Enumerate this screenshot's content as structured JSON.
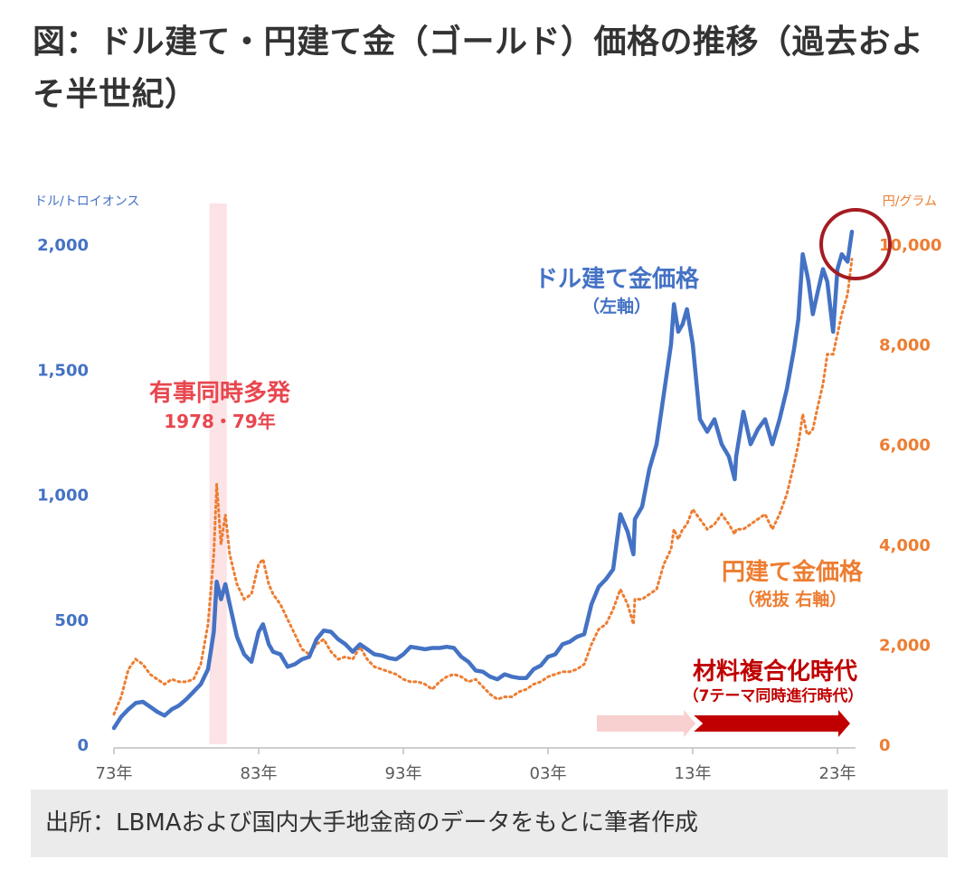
{
  "title": "図：ドル建て・円建て金（ゴールド）価格の推移（過去およそ半世紀）",
  "source_note": "出所：LBMAおよび国内大手地金商のデータをもとに筆者作成",
  "colors": {
    "usd_series": "#4472c4",
    "jpy_series": "#ed7d31",
    "event_band": "#fbe3e6",
    "event_label": "#e8474f",
    "era_label": "#c00000",
    "arrow_light": "#f8d0d0",
    "arrow_dark": "#c00000",
    "circle": "#a51c22"
  },
  "chart_data": {
    "type": "line",
    "left_axis": {
      "unit_label": "ドル/トロイオンス",
      "ticks": [
        0,
        500,
        1000,
        1500,
        2000
      ],
      "tick_labels": [
        "0",
        "500",
        "1,000",
        "1,500",
        "2,000"
      ],
      "range": [
        0,
        2000
      ]
    },
    "right_axis": {
      "unit_label": "円/グラム",
      "ticks": [
        0,
        2000,
        4000,
        6000,
        8000,
        10000
      ],
      "tick_labels": [
        "0",
        "2,000",
        "4,000",
        "6,000",
        "8,000",
        "10,000"
      ],
      "range": [
        0,
        10000
      ]
    },
    "x_axis": {
      "range": [
        1973,
        2024.5
      ],
      "ticks": [
        1973,
        1983,
        1993,
        2003,
        2013,
        2023
      ],
      "tick_labels": [
        "73年",
        "83年",
        "93年",
        "03年",
        "13年",
        "23年"
      ]
    },
    "series": [
      {
        "name": "ドル建て金価格",
        "axis": "left",
        "style": "solid",
        "points": [
          [
            1973,
            65
          ],
          [
            1973.5,
            110
          ],
          [
            1974,
            140
          ],
          [
            1974.5,
            165
          ],
          [
            1975,
            170
          ],
          [
            1975.5,
            150
          ],
          [
            1976,
            130
          ],
          [
            1976.5,
            115
          ],
          [
            1977,
            140
          ],
          [
            1977.5,
            155
          ],
          [
            1978,
            180
          ],
          [
            1978.5,
            210
          ],
          [
            1979,
            240
          ],
          [
            1979.5,
            300
          ],
          [
            1979.9,
            450
          ],
          [
            1980.1,
            650
          ],
          [
            1980.4,
            580
          ],
          [
            1980.7,
            640
          ],
          [
            1981,
            560
          ],
          [
            1981.5,
            430
          ],
          [
            1982,
            360
          ],
          [
            1982.5,
            330
          ],
          [
            1983,
            450
          ],
          [
            1983.3,
            480
          ],
          [
            1983.7,
            400
          ],
          [
            1984,
            370
          ],
          [
            1984.5,
            360
          ],
          [
            1985,
            310
          ],
          [
            1985.5,
            320
          ],
          [
            1986,
            340
          ],
          [
            1986.5,
            350
          ],
          [
            1987,
            420
          ],
          [
            1987.5,
            455
          ],
          [
            1988,
            450
          ],
          [
            1988.5,
            420
          ],
          [
            1989,
            400
          ],
          [
            1989.5,
            370
          ],
          [
            1990,
            400
          ],
          [
            1990.5,
            380
          ],
          [
            1991,
            360
          ],
          [
            1991.5,
            355
          ],
          [
            1992,
            345
          ],
          [
            1992.5,
            340
          ],
          [
            1993,
            360
          ],
          [
            1993.5,
            390
          ],
          [
            1994,
            385
          ],
          [
            1994.5,
            380
          ],
          [
            1995,
            385
          ],
          [
            1995.5,
            385
          ],
          [
            1996,
            390
          ],
          [
            1996.5,
            385
          ],
          [
            1997,
            350
          ],
          [
            1997.5,
            330
          ],
          [
            1998,
            295
          ],
          [
            1998.5,
            290
          ],
          [
            1999,
            270
          ],
          [
            1999.5,
            260
          ],
          [
            2000,
            280
          ],
          [
            2000.5,
            270
          ],
          [
            2001,
            265
          ],
          [
            2001.5,
            265
          ],
          [
            2002,
            300
          ],
          [
            2002.5,
            315
          ],
          [
            2003,
            350
          ],
          [
            2003.5,
            360
          ],
          [
            2004,
            400
          ],
          [
            2004.5,
            410
          ],
          [
            2005,
            430
          ],
          [
            2005.5,
            440
          ],
          [
            2006,
            560
          ],
          [
            2006.5,
            630
          ],
          [
            2007,
            660
          ],
          [
            2007.5,
            700
          ],
          [
            2008,
            920
          ],
          [
            2008.5,
            850
          ],
          [
            2008.9,
            760
          ],
          [
            2009,
            900
          ],
          [
            2009.5,
            950
          ],
          [
            2010,
            1100
          ],
          [
            2010.5,
            1200
          ],
          [
            2011,
            1400
          ],
          [
            2011.5,
            1600
          ],
          [
            2011.7,
            1760
          ],
          [
            2012,
            1650
          ],
          [
            2012.3,
            1680
          ],
          [
            2012.6,
            1740
          ],
          [
            2013,
            1600
          ],
          [
            2013.5,
            1300
          ],
          [
            2014,
            1250
          ],
          [
            2014.5,
            1300
          ],
          [
            2015,
            1200
          ],
          [
            2015.5,
            1150
          ],
          [
            2015.9,
            1060
          ],
          [
            2016,
            1150
          ],
          [
            2016.5,
            1330
          ],
          [
            2017,
            1200
          ],
          [
            2017.5,
            1260
          ],
          [
            2018,
            1300
          ],
          [
            2018.5,
            1200
          ],
          [
            2019,
            1300
          ],
          [
            2019.5,
            1420
          ],
          [
            2020,
            1580
          ],
          [
            2020.3,
            1700
          ],
          [
            2020.6,
            1960
          ],
          [
            2020.9,
            1880
          ],
          [
            2021,
            1850
          ],
          [
            2021.3,
            1720
          ],
          [
            2021.6,
            1800
          ],
          [
            2022,
            1900
          ],
          [
            2022.3,
            1850
          ],
          [
            2022.7,
            1650
          ],
          [
            2023,
            1900
          ],
          [
            2023.3,
            1960
          ],
          [
            2023.7,
            1930
          ],
          [
            2024,
            2050
          ]
        ]
      },
      {
        "name": "円建て金価格",
        "axis": "right",
        "style": "dotted",
        "points": [
          [
            1973,
            600
          ],
          [
            1973.5,
            950
          ],
          [
            1974,
            1500
          ],
          [
            1974.5,
            1700
          ],
          [
            1975,
            1600
          ],
          [
            1975.5,
            1400
          ],
          [
            1976,
            1300
          ],
          [
            1976.5,
            1200
          ],
          [
            1977,
            1300
          ],
          [
            1977.5,
            1250
          ],
          [
            1978,
            1250
          ],
          [
            1978.5,
            1300
          ],
          [
            1979,
            1600
          ],
          [
            1979.5,
            2400
          ],
          [
            1979.9,
            3800
          ],
          [
            1980.1,
            5200
          ],
          [
            1980.4,
            4000
          ],
          [
            1980.7,
            4600
          ],
          [
            1981,
            3800
          ],
          [
            1981.5,
            3200
          ],
          [
            1982,
            2900
          ],
          [
            1982.5,
            3000
          ],
          [
            1983,
            3600
          ],
          [
            1983.3,
            3700
          ],
          [
            1983.7,
            3200
          ],
          [
            1984,
            3000
          ],
          [
            1984.5,
            2800
          ],
          [
            1985,
            2500
          ],
          [
            1985.5,
            2200
          ],
          [
            1986,
            1900
          ],
          [
            1986.5,
            1800
          ],
          [
            1987,
            2000
          ],
          [
            1987.5,
            2100
          ],
          [
            1988,
            1850
          ],
          [
            1988.5,
            1700
          ],
          [
            1989,
            1750
          ],
          [
            1989.5,
            1700
          ],
          [
            1990,
            1950
          ],
          [
            1990.5,
            1700
          ],
          [
            1991,
            1550
          ],
          [
            1991.5,
            1500
          ],
          [
            1992,
            1450
          ],
          [
            1992.5,
            1400
          ],
          [
            1993,
            1300
          ],
          [
            1993.5,
            1250
          ],
          [
            1994,
            1250
          ],
          [
            1994.5,
            1200
          ],
          [
            1995,
            1100
          ],
          [
            1995.5,
            1250
          ],
          [
            1996,
            1350
          ],
          [
            1996.5,
            1400
          ],
          [
            1997,
            1350
          ],
          [
            1997.5,
            1250
          ],
          [
            1998,
            1300
          ],
          [
            1998.5,
            1150
          ],
          [
            1999,
            1000
          ],
          [
            1999.5,
            900
          ],
          [
            2000,
            950
          ],
          [
            2000.5,
            950
          ],
          [
            2001,
            1050
          ],
          [
            2001.5,
            1100
          ],
          [
            2002,
            1200
          ],
          [
            2002.5,
            1250
          ],
          [
            2003,
            1350
          ],
          [
            2003.5,
            1400
          ],
          [
            2004,
            1450
          ],
          [
            2004.5,
            1450
          ],
          [
            2005,
            1500
          ],
          [
            2005.5,
            1600
          ],
          [
            2006,
            2000
          ],
          [
            2006.5,
            2300
          ],
          [
            2007,
            2400
          ],
          [
            2007.5,
            2700
          ],
          [
            2008,
            3100
          ],
          [
            2008.5,
            2800
          ],
          [
            2008.9,
            2400
          ],
          [
            2009,
            2900
          ],
          [
            2009.5,
            2900
          ],
          [
            2010,
            3000
          ],
          [
            2010.5,
            3100
          ],
          [
            2011,
            3600
          ],
          [
            2011.5,
            3900
          ],
          [
            2011.7,
            4300
          ],
          [
            2012,
            4100
          ],
          [
            2012.3,
            4300
          ],
          [
            2012.6,
            4400
          ],
          [
            2013,
            4700
          ],
          [
            2013.5,
            4500
          ],
          [
            2014,
            4300
          ],
          [
            2014.5,
            4400
          ],
          [
            2015,
            4600
          ],
          [
            2015.5,
            4400
          ],
          [
            2015.9,
            4200
          ],
          [
            2016,
            4300
          ],
          [
            2016.5,
            4300
          ],
          [
            2017,
            4400
          ],
          [
            2017.5,
            4500
          ],
          [
            2018,
            4600
          ],
          [
            2018.5,
            4300
          ],
          [
            2019,
            4600
          ],
          [
            2019.5,
            5000
          ],
          [
            2020,
            5600
          ],
          [
            2020.3,
            6000
          ],
          [
            2020.6,
            6600
          ],
          [
            2020.9,
            6200
          ],
          [
            2021,
            6200
          ],
          [
            2021.3,
            6300
          ],
          [
            2021.6,
            6700
          ],
          [
            2022,
            7200
          ],
          [
            2022.3,
            7800
          ],
          [
            2022.7,
            7800
          ],
          [
            2023,
            8200
          ],
          [
            2023.3,
            8600
          ],
          [
            2023.7,
            9000
          ],
          [
            2024,
            9700
          ]
        ]
      }
    ],
    "annotations": {
      "event_label": "有事同時多発",
      "event_years": "1978・79年",
      "event_band_years": [
        1979.6,
        1980.8
      ],
      "usd_series_label": "ドル建て金価格",
      "usd_series_sublabel": "（左軸）",
      "jpy_series_label": "円建て金価格",
      "jpy_series_sublabel": "（税抜 右軸）",
      "era_label": "材料複合化時代",
      "era_sublabel": "（7テーマ同時進行時代）",
      "era_arrow_years": [
        2006,
        2024
      ]
    }
  }
}
